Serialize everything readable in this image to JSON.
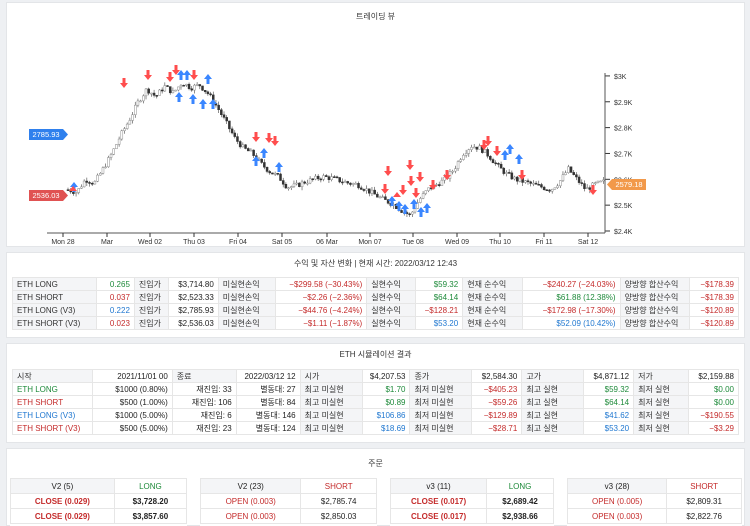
{
  "chart": {
    "title": "트레이딩 뷰",
    "y_ticks": [
      "$3K",
      "$2.9K",
      "$2.8K",
      "$2.7K",
      "$2.6K",
      "$2.5K",
      "$2.4K"
    ],
    "x_ticks": [
      "Mon 28",
      "Mar",
      "Wed 02",
      "Thu 03",
      "Fri 04",
      "Sat 05",
      "06 Mar",
      "Mon 07",
      "Tue 08",
      "Wed 09",
      "Thu 10",
      "Fri 11",
      "Sat 12"
    ],
    "price_label_left_1": "2785.93",
    "price_label_left_2": "2536.03",
    "price_label_right": "2579.18",
    "colors": {
      "up": "#ff4d4d",
      "down": "#3a86ff",
      "label_blue": "#2f80ed",
      "label_red": "#e05252",
      "label_orange": "#f2994a"
    }
  },
  "chart_data": {
    "type": "candlestick",
    "y_range": [
      2400,
      3050
    ],
    "close_series": [
      2560,
      2550,
      2600,
      2585,
      2640,
      2700,
      2770,
      2830,
      2900,
      2950,
      2920,
      2960,
      2935,
      2975,
      2955,
      2965,
      2930,
      2880,
      2820,
      2760,
      2720,
      2700,
      2660,
      2630,
      2610,
      2570,
      2575,
      2590,
      2600,
      2610,
      2605,
      2595,
      2585,
      2580,
      2560,
      2540,
      2520,
      2505,
      2480,
      2460,
      2520,
      2560,
      2580,
      2600,
      2640,
      2700,
      2730,
      2720,
      2690,
      2650,
      2620,
      2600,
      2590,
      2580,
      2570,
      2560,
      2590,
      2640,
      2600,
      2560,
      2580,
      2590
    ]
  },
  "pnl": {
    "title": "수익 및 자산 변화 | 현재 시간: 2022/03/12 12:43",
    "rows": [
      {
        "name": "ETH LONG",
        "qty": "0.265",
        "entry_lbl": "진입가",
        "entry": "$3,714.80",
        "unreal_lbl": "미실현손익",
        "unreal": "−$299.58 (−30.43%)",
        "real_lbl": "실현수익",
        "real": "$59.32",
        "net_lbl": "현재 순수익",
        "net": "−$240.27 (−24.03%)",
        "both_lbl": "양방향 합산수익",
        "both": "−$178.39"
      },
      {
        "name": "ETH SHORT",
        "qty": "0.037",
        "entry_lbl": "진입가",
        "entry": "$2,523.33",
        "unreal_lbl": "미실현손익",
        "unreal": "−$2.26 (−2.36%)",
        "real_lbl": "실현수익",
        "real": "$64.14",
        "net_lbl": "현재 순수익",
        "net": "$61.88 (12.38%)",
        "both_lbl": "양방향 합산수익",
        "both": "−$178.39"
      },
      {
        "name": "ETH LONG (V3)",
        "qty": "0.222",
        "entry_lbl": "진입가",
        "entry": "$2,785.93",
        "unreal_lbl": "미실현손익",
        "unreal": "−$44.76 (−4.24%)",
        "real_lbl": "실현수익",
        "real": "−$128.21",
        "net_lbl": "현재 순수익",
        "net": "−$172.98 (−17.30%)",
        "both_lbl": "양방향 합산수익",
        "both": "−$120.89"
      },
      {
        "name": "ETH SHORT (V3)",
        "qty": "0.023",
        "entry_lbl": "진입가",
        "entry": "$2,536.03",
        "unreal_lbl": "미실현손익",
        "unreal": "−$1.11 (−1.87%)",
        "real_lbl": "실현수익",
        "real": "$53.20",
        "net_lbl": "현재 순수익",
        "net": "$52.09 (10.42%)",
        "both_lbl": "양방향 합산수익",
        "both": "−$120.89"
      }
    ]
  },
  "sim": {
    "title": "ETH 시뮬레이션 결과",
    "start_lbl": "시작",
    "start": "2021/11/01 00",
    "end_lbl": "종료",
    "end": "2022/03/12 12",
    "open_lbl": "시가",
    "open": "$4,207.53",
    "close_lbl": "종가",
    "close": "$2,584.30",
    "high_lbl": "고가",
    "high": "$4,871.12",
    "low_lbl": "저가",
    "low": "$2,159.88",
    "rows": [
      {
        "name": "ETH LONG",
        "alloc": "$1000 (0.80%)",
        "re_lbl": "재진입: 33",
        "cnt_lbl": "별동대: 27",
        "max_unreal_lbl": "최고 미실현",
        "max_unreal": "$1.70",
        "min_unreal_lbl": "최저 미실현",
        "min_unreal": "−$405.23",
        "max_real_lbl": "최고 실현",
        "max_real": "$59.32",
        "min_real_lbl": "최저 실현",
        "min_real": "$0.00"
      },
      {
        "name": "ETH SHORT",
        "alloc": "$500 (1.00%)",
        "re_lbl": "재진입: 106",
        "cnt_lbl": "별동대: 84",
        "max_unreal_lbl": "최고 미실현",
        "max_unreal": "$0.89",
        "min_unreal_lbl": "최저 미실현",
        "min_unreal": "−$59.26",
        "max_real_lbl": "최고 실현",
        "max_real": "$64.14",
        "min_real_lbl": "최저 실현",
        "min_real": "$0.00"
      },
      {
        "name": "ETH LONG (V3)",
        "alloc": "$1000 (5.00%)",
        "re_lbl": "재진입: 6",
        "cnt_lbl": "별동대: 146",
        "max_unreal_lbl": "최고 미실현",
        "max_unreal": "$106.86",
        "min_unreal_lbl": "최저 미실현",
        "min_unreal": "−$129.89",
        "max_real_lbl": "최고 실현",
        "max_real": "$41.62",
        "min_real_lbl": "최저 실현",
        "min_real": "−$190.55"
      },
      {
        "name": "ETH SHORT (V3)",
        "alloc": "$500 (5.00%)",
        "re_lbl": "재진입: 23",
        "cnt_lbl": "별동대: 124",
        "max_unreal_lbl": "최고 미실현",
        "max_unreal": "$18.69",
        "min_unreal_lbl": "최저 미실현",
        "min_unreal": "−$28.71",
        "max_real_lbl": "최고 실현",
        "max_real": "$53.20",
        "min_real_lbl": "최저 실현",
        "min_real": "−$3.29"
      }
    ]
  },
  "orders": {
    "title": "주문",
    "cards": [
      {
        "name": "V2 (5)",
        "side": "LONG",
        "rows": [
          {
            "action": "CLOSE (0.029)",
            "price": "$3,728.20"
          },
          {
            "action": "CLOSE (0.029)",
            "price": "$3,857.60"
          }
        ]
      },
      {
        "name": "V2 (23)",
        "side": "SHORT",
        "rows": [
          {
            "action": "OPEN (0.003)",
            "price": "$2,785.74"
          },
          {
            "action": "OPEN (0.003)",
            "price": "$2,850.03"
          }
        ]
      },
      {
        "name": "v3 (11)",
        "side": "LONG",
        "rows": [
          {
            "action": "CLOSE (0.017)",
            "price": "$2,689.42"
          },
          {
            "action": "CLOSE (0.017)",
            "price": "$2,938.66"
          }
        ]
      },
      {
        "name": "v3 (28)",
        "side": "SHORT",
        "rows": [
          {
            "action": "OPEN (0.005)",
            "price": "$2,809.31"
          },
          {
            "action": "OPEN (0.003)",
            "price": "$2,822.76"
          }
        ]
      }
    ]
  }
}
